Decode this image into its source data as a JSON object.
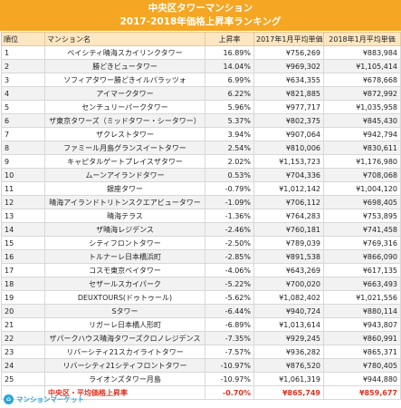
{
  "header": {
    "title_line1": "中央区タワーマンション",
    "title_line2": "2017-2018年価格上昇率ランキング"
  },
  "columns": {
    "rank": "順位",
    "name": "マンション名",
    "rate": "上昇率",
    "price_2017": "2017年1月平均単価",
    "price_2018": "2018年1月平均単価"
  },
  "rows": [
    {
      "rank": "1",
      "name": "ベイシティ晴海スカイリンクタワー",
      "rate": "16.89%",
      "p17": "¥756,269",
      "p18": "¥883,984"
    },
    {
      "rank": "2",
      "name": "勝どきビュータワー",
      "rate": "14.04%",
      "p17": "¥969,302",
      "p18": "¥1,105,414"
    },
    {
      "rank": "3",
      "name": "ソフィアタワー勝どきイルパラッツォ",
      "rate": "6.99%",
      "p17": "¥634,355",
      "p18": "¥678,668"
    },
    {
      "rank": "4",
      "name": "アイマークタワー",
      "rate": "6.22%",
      "p17": "¥821,885",
      "p18": "¥872,992"
    },
    {
      "rank": "5",
      "name": "センチュリーパークタワー",
      "rate": "5.96%",
      "p17": "¥977,717",
      "p18": "¥1,035,958"
    },
    {
      "rank": "6",
      "name": "ザ東京タワーズ（ミッドタワー・シータワー）",
      "rate": "5.37%",
      "p17": "¥802,375",
      "p18": "¥845,430"
    },
    {
      "rank": "7",
      "name": "ザクレストタワー",
      "rate": "3.94%",
      "p17": "¥907,064",
      "p18": "¥942,794"
    },
    {
      "rank": "8",
      "name": "ファミール月島グランスイートタワー",
      "rate": "2.54%",
      "p17": "¥810,006",
      "p18": "¥830,611"
    },
    {
      "rank": "9",
      "name": "キャピタルゲートプレイスザタワー",
      "rate": "2.02%",
      "p17": "¥1,153,723",
      "p18": "¥1,176,980"
    },
    {
      "rank": "10",
      "name": "ムーンアイランドタワー",
      "rate": "0.53%",
      "p17": "¥704,336",
      "p18": "¥708,068"
    },
    {
      "rank": "11",
      "name": "銀座タワー",
      "rate": "-0.79%",
      "p17": "¥1,012,142",
      "p18": "¥1,004,120"
    },
    {
      "rank": "12",
      "name": "晴海アイランドトリトンスクエアビュータワー",
      "rate": "-1.09%",
      "p17": "¥706,112",
      "p18": "¥698,405"
    },
    {
      "rank": "13",
      "name": "晴海テラス",
      "rate": "-1.36%",
      "p17": "¥764,283",
      "p18": "¥753,895"
    },
    {
      "rank": "14",
      "name": "ザ晴海レジデンス",
      "rate": "-2.46%",
      "p17": "¥760,181",
      "p18": "¥741,458"
    },
    {
      "rank": "15",
      "name": "シティフロントタワー",
      "rate": "-2.50%",
      "p17": "¥789,039",
      "p18": "¥769,316"
    },
    {
      "rank": "16",
      "name": "トルナーレ日本橋浜町",
      "rate": "-2.85%",
      "p17": "¥891,538",
      "p18": "¥866,090"
    },
    {
      "rank": "17",
      "name": "コスモ東京ベイタワー",
      "rate": "-4.06%",
      "p17": "¥643,269",
      "p18": "¥617,135"
    },
    {
      "rank": "18",
      "name": "セザールスカイパーク",
      "rate": "-5.22%",
      "p17": "¥700,020",
      "p18": "¥663,493"
    },
    {
      "rank": "19",
      "name": "DEUXTOURS(ドゥトゥール)",
      "rate": "-5.62%",
      "p17": "¥1,082,402",
      "p18": "¥1,021,556"
    },
    {
      "rank": "20",
      "name": "Sタワー",
      "rate": "-6.44%",
      "p17": "¥940,724",
      "p18": "¥880,114"
    },
    {
      "rank": "21",
      "name": "リガーレ日本橋人形町",
      "rate": "-6.89%",
      "p17": "¥1,013,614",
      "p18": "¥943,807"
    },
    {
      "rank": "22",
      "name": "ザパークハウス晴海タワーズクロノレジデンス",
      "rate": "-7.35%",
      "p17": "¥929,245",
      "p18": "¥860,991"
    },
    {
      "rank": "23",
      "name": "リバーシティ21スカイライトタワー",
      "rate": "-7.57%",
      "p17": "¥936,282",
      "p18": "¥865,371"
    },
    {
      "rank": "24",
      "name": "リバーシティ21シティフロントタワー",
      "rate": "-10.97%",
      "p17": "¥876,520",
      "p18": "¥780,405"
    },
    {
      "rank": "25",
      "name": "ライオンズタワー月島",
      "rate": "-10.97%",
      "p17": "¥1,061,319",
      "p18": "¥944,880"
    }
  ],
  "average": {
    "label": "中央区・平均価格上昇率",
    "rate": "-0.70%",
    "p17": "¥865,749",
    "p18": "¥859,677"
  },
  "footer": {
    "brand": "マンションマーケット",
    "logo_icon": "house-circle-icon",
    "brand_color": "#2aa7d6",
    "header_color": "#f5a623",
    "average_color": "#e0301e"
  }
}
